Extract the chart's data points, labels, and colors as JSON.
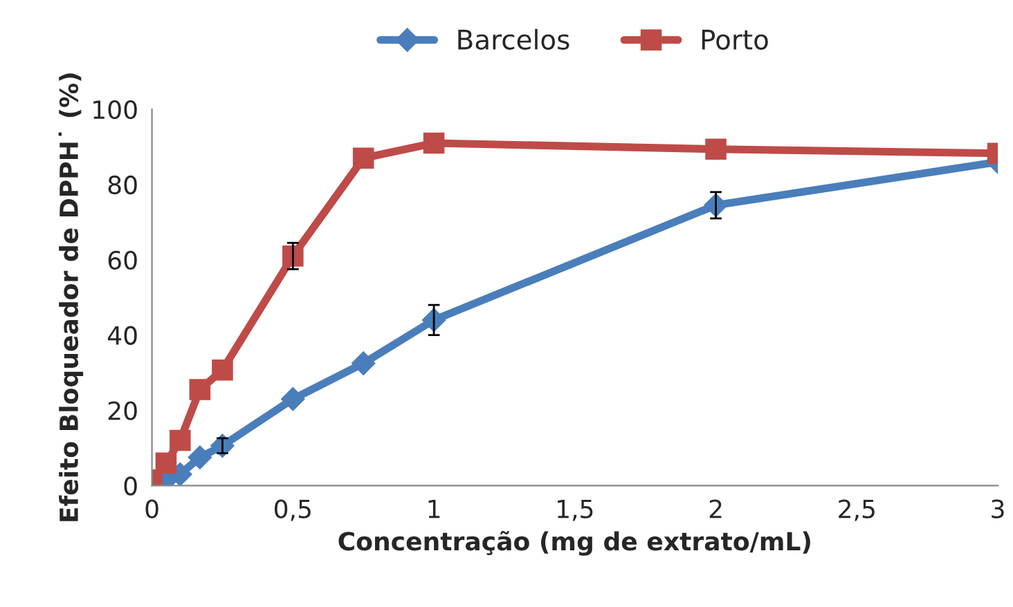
{
  "chart_data": {
    "type": "line",
    "xlabel": "Concentração (mg de extrato/mL)",
    "ylabel": "Efeito Bloqueador de DPPH˙ (%)",
    "x": [
      0,
      0.05,
      0.1,
      0.17,
      0.25,
      0.5,
      0.75,
      1,
      2,
      3
    ],
    "series": [
      {
        "name": "Barcelos",
        "color": "#4a7ebb",
        "marker": "diamond",
        "values": [
          0,
          1.5,
          3,
          7.5,
          10.6,
          23,
          32.5,
          44,
          74.5,
          86
        ],
        "errors": [
          null,
          null,
          null,
          null,
          2,
          null,
          null,
          4,
          3.5,
          null
        ]
      },
      {
        "name": "Porto",
        "color": "#be4b48",
        "marker": "square",
        "values": [
          1.5,
          6,
          12,
          25.5,
          30.7,
          61,
          87,
          91,
          89.4,
          88.3
        ],
        "errors": [
          null,
          null,
          null,
          null,
          null,
          3.5,
          null,
          null,
          null,
          null
        ]
      }
    ],
    "xlim": [
      0,
      3
    ],
    "xticks": [
      0,
      {
        "value": 0.5,
        "label": "0,5"
      },
      1,
      {
        "value": 1.5,
        "label": "1,5"
      },
      2,
      {
        "value": 2.5,
        "label": "2,5"
      },
      3
    ],
    "ylim": [
      0,
      100
    ],
    "yticks": [
      0,
      20,
      40,
      60,
      80,
      100
    ],
    "grid": false,
    "legend": "top",
    "line_style": "solid"
  }
}
